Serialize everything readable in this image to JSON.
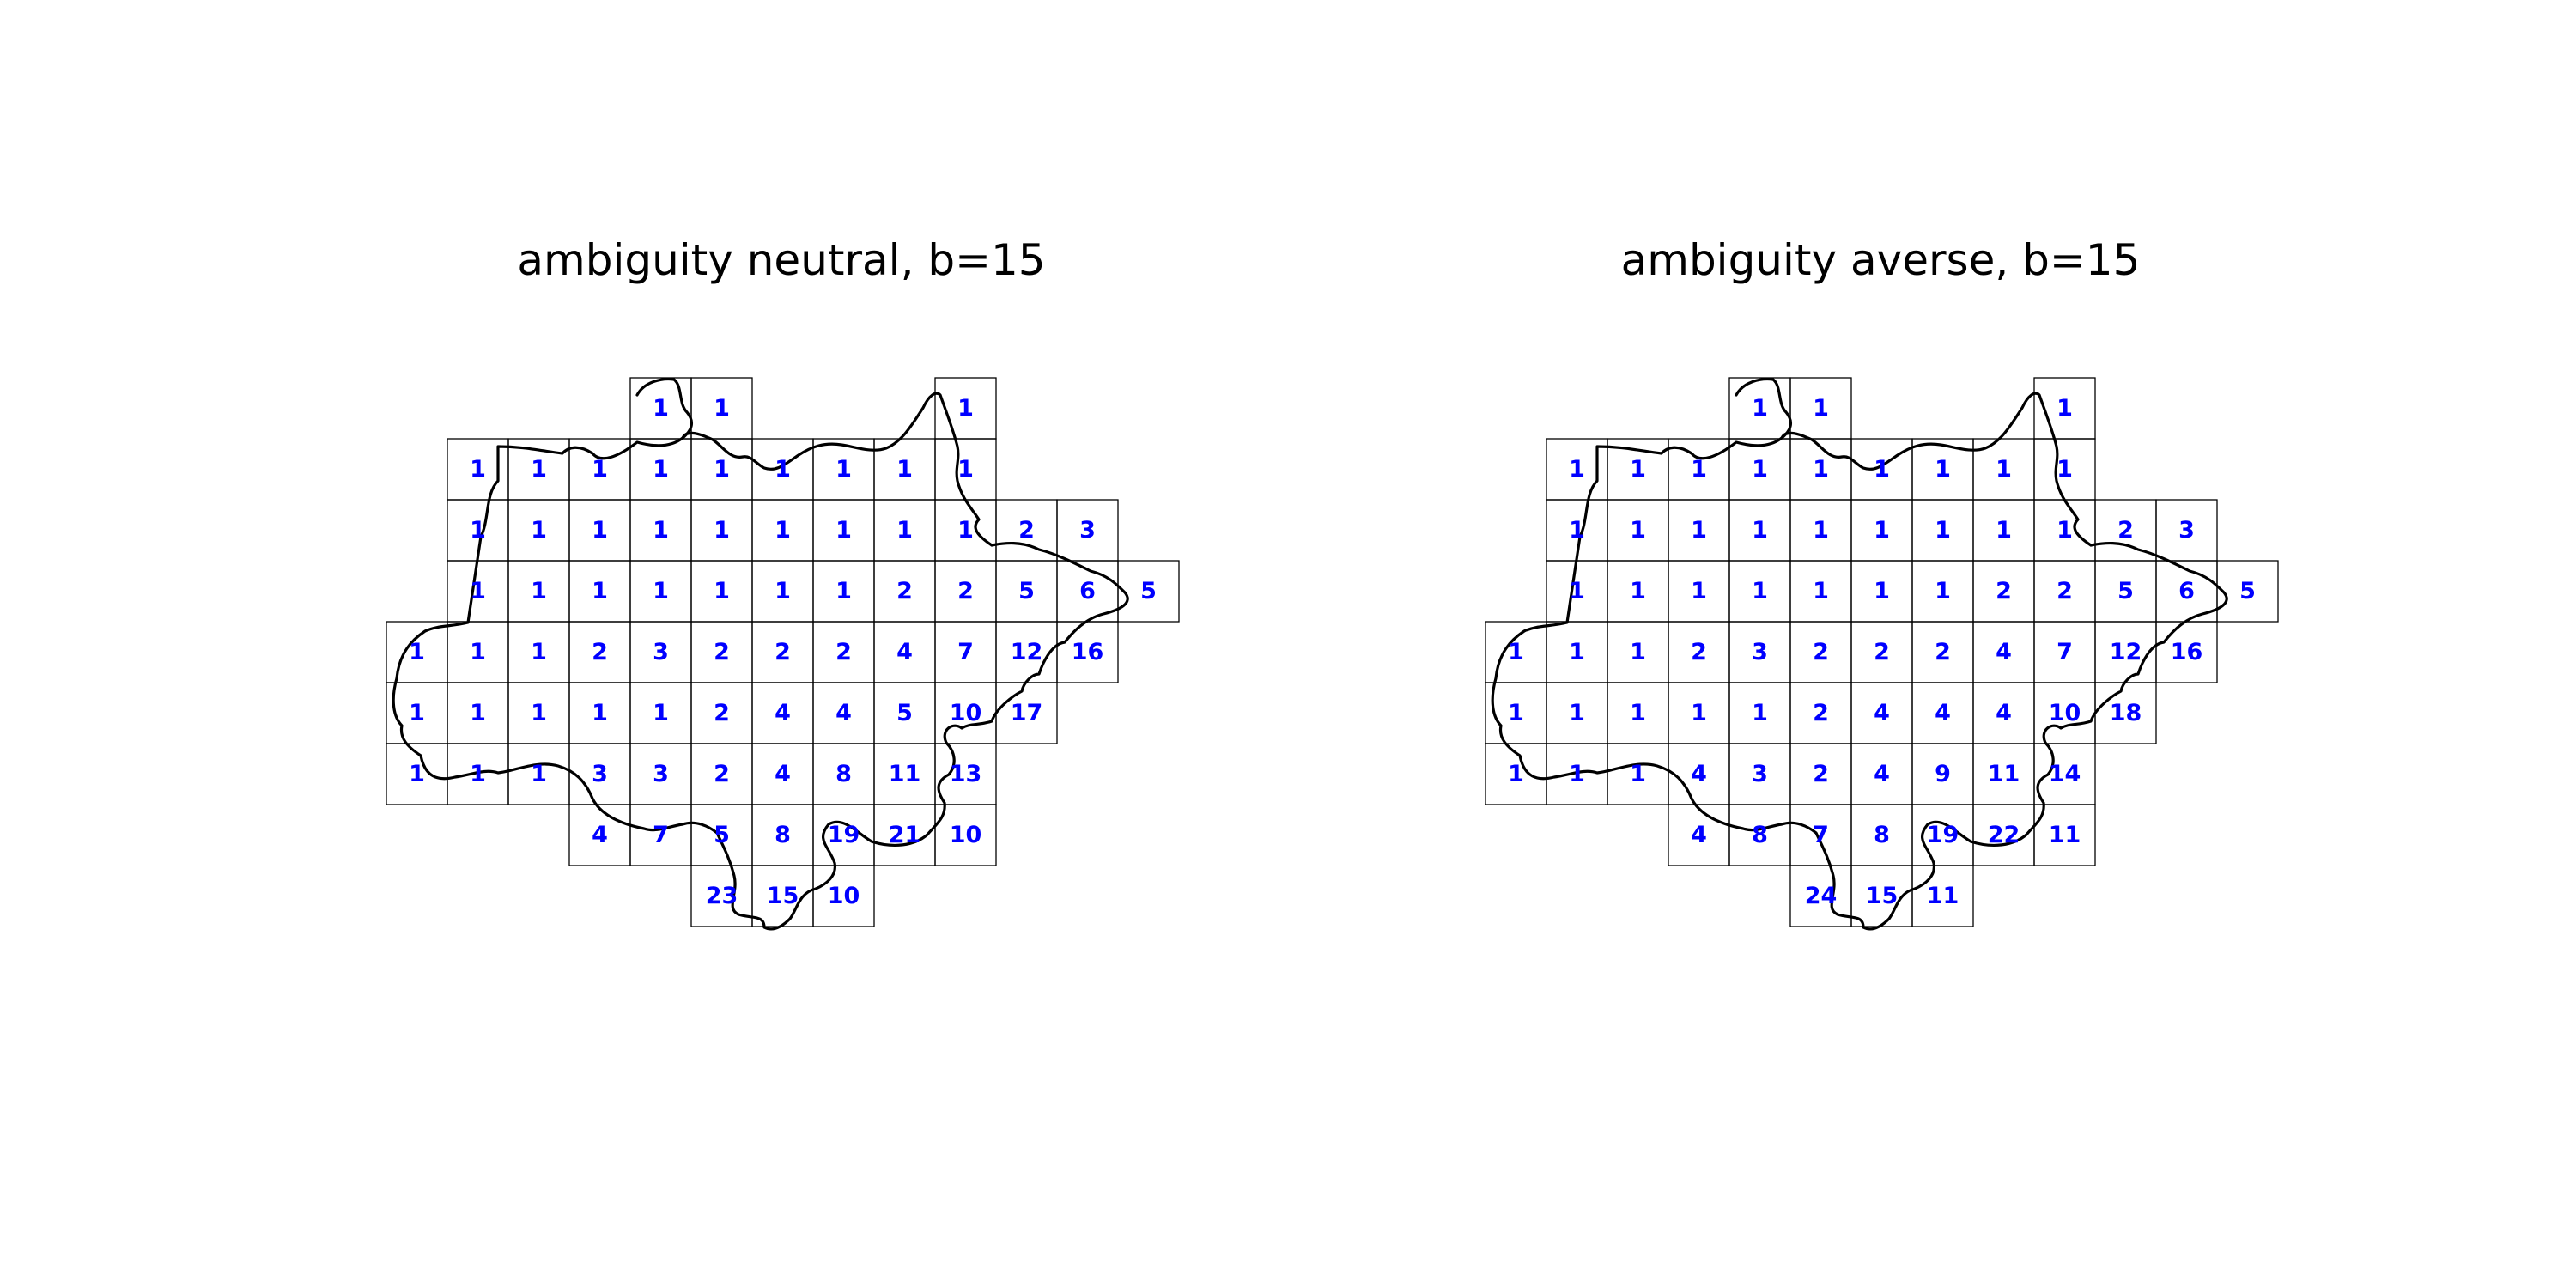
{
  "colors": {
    "label": "#0000ff",
    "grid": "#000000",
    "border": "#000000",
    "background": "#ffffff"
  },
  "panels": [
    {
      "title": "ambiguity neutral, b=15",
      "rows": [
        {
          "cols": [
            4,
            5,
            9
          ],
          "values": [
            "1",
            "1",
            "1"
          ]
        },
        {
          "cols": [
            1,
            2,
            3,
            4,
            5,
            6,
            7,
            8,
            9
          ],
          "values": [
            "1",
            "1",
            "1",
            "1",
            "1",
            "1",
            "1",
            "1",
            "1"
          ]
        },
        {
          "cols": [
            1,
            2,
            3,
            4,
            5,
            6,
            7,
            8,
            9,
            10,
            11
          ],
          "values": [
            "1",
            "1",
            "1",
            "1",
            "1",
            "1",
            "1",
            "1",
            "1",
            "2",
            "3"
          ]
        },
        {
          "cols": [
            1,
            2,
            3,
            4,
            5,
            6,
            7,
            8,
            9,
            10,
            11,
            12
          ],
          "values": [
            "1",
            "1",
            "1",
            "1",
            "1",
            "1",
            "1",
            "2",
            "2",
            "5",
            "6",
            "5"
          ]
        },
        {
          "cols": [
            0,
            1,
            2,
            3,
            4,
            5,
            6,
            7,
            8,
            9,
            10,
            11
          ],
          "values": [
            "1",
            "1",
            "1",
            "2",
            "3",
            "2",
            "2",
            "2",
            "4",
            "7",
            "12",
            "16"
          ]
        },
        {
          "cols": [
            0,
            1,
            2,
            3,
            4,
            5,
            6,
            7,
            8,
            9,
            10
          ],
          "values": [
            "1",
            "1",
            "1",
            "1",
            "1",
            "2",
            "4",
            "4",
            "5",
            "10",
            "17"
          ]
        },
        {
          "cols": [
            0,
            1,
            2,
            3,
            4,
            5,
            6,
            7,
            8,
            9
          ],
          "values": [
            "1",
            "1",
            "1",
            "3",
            "3",
            "2",
            "4",
            "8",
            "11",
            "13"
          ]
        },
        {
          "cols": [
            3,
            4,
            5,
            6,
            7,
            8,
            9
          ],
          "values": [
            "4",
            "7",
            "5",
            "8",
            "19",
            "21",
            "10"
          ]
        },
        {
          "cols": [
            5,
            6,
            7
          ],
          "values": [
            "23",
            "15",
            "10"
          ]
        }
      ]
    },
    {
      "title": "ambiguity averse, b=15",
      "rows": [
        {
          "cols": [
            4,
            5,
            9
          ],
          "values": [
            "1",
            "1",
            "1"
          ]
        },
        {
          "cols": [
            1,
            2,
            3,
            4,
            5,
            6,
            7,
            8,
            9
          ],
          "values": [
            "1",
            "1",
            "1",
            "1",
            "1",
            "1",
            "1",
            "1",
            "1"
          ]
        },
        {
          "cols": [
            1,
            2,
            3,
            4,
            5,
            6,
            7,
            8,
            9,
            10,
            11
          ],
          "values": [
            "1",
            "1",
            "1",
            "1",
            "1",
            "1",
            "1",
            "1",
            "1",
            "2",
            "3"
          ]
        },
        {
          "cols": [
            1,
            2,
            3,
            4,
            5,
            6,
            7,
            8,
            9,
            10,
            11,
            12
          ],
          "values": [
            "1",
            "1",
            "1",
            "1",
            "1",
            "1",
            "1",
            "2",
            "2",
            "5",
            "6",
            "5"
          ]
        },
        {
          "cols": [
            0,
            1,
            2,
            3,
            4,
            5,
            6,
            7,
            8,
            9,
            10,
            11
          ],
          "values": [
            "1",
            "1",
            "1",
            "2",
            "3",
            "2",
            "2",
            "2",
            "4",
            "7",
            "12",
            "16"
          ]
        },
        {
          "cols": [
            0,
            1,
            2,
            3,
            4,
            5,
            6,
            7,
            8,
            9,
            10
          ],
          "values": [
            "1",
            "1",
            "1",
            "1",
            "1",
            "2",
            "4",
            "4",
            "4",
            "10",
            "18"
          ]
        },
        {
          "cols": [
            0,
            1,
            2,
            3,
            4,
            5,
            6,
            7,
            8,
            9
          ],
          "values": [
            "1",
            "1",
            "1",
            "4",
            "3",
            "2",
            "4",
            "9",
            "11",
            "14"
          ]
        },
        {
          "cols": [
            3,
            4,
            5,
            6,
            7,
            8,
            9
          ],
          "values": [
            "4",
            "8",
            "7",
            "8",
            "19",
            "22",
            "11"
          ]
        },
        {
          "cols": [
            5,
            6,
            7
          ],
          "values": [
            "24",
            "15",
            "11"
          ]
        }
      ]
    }
  ]
}
